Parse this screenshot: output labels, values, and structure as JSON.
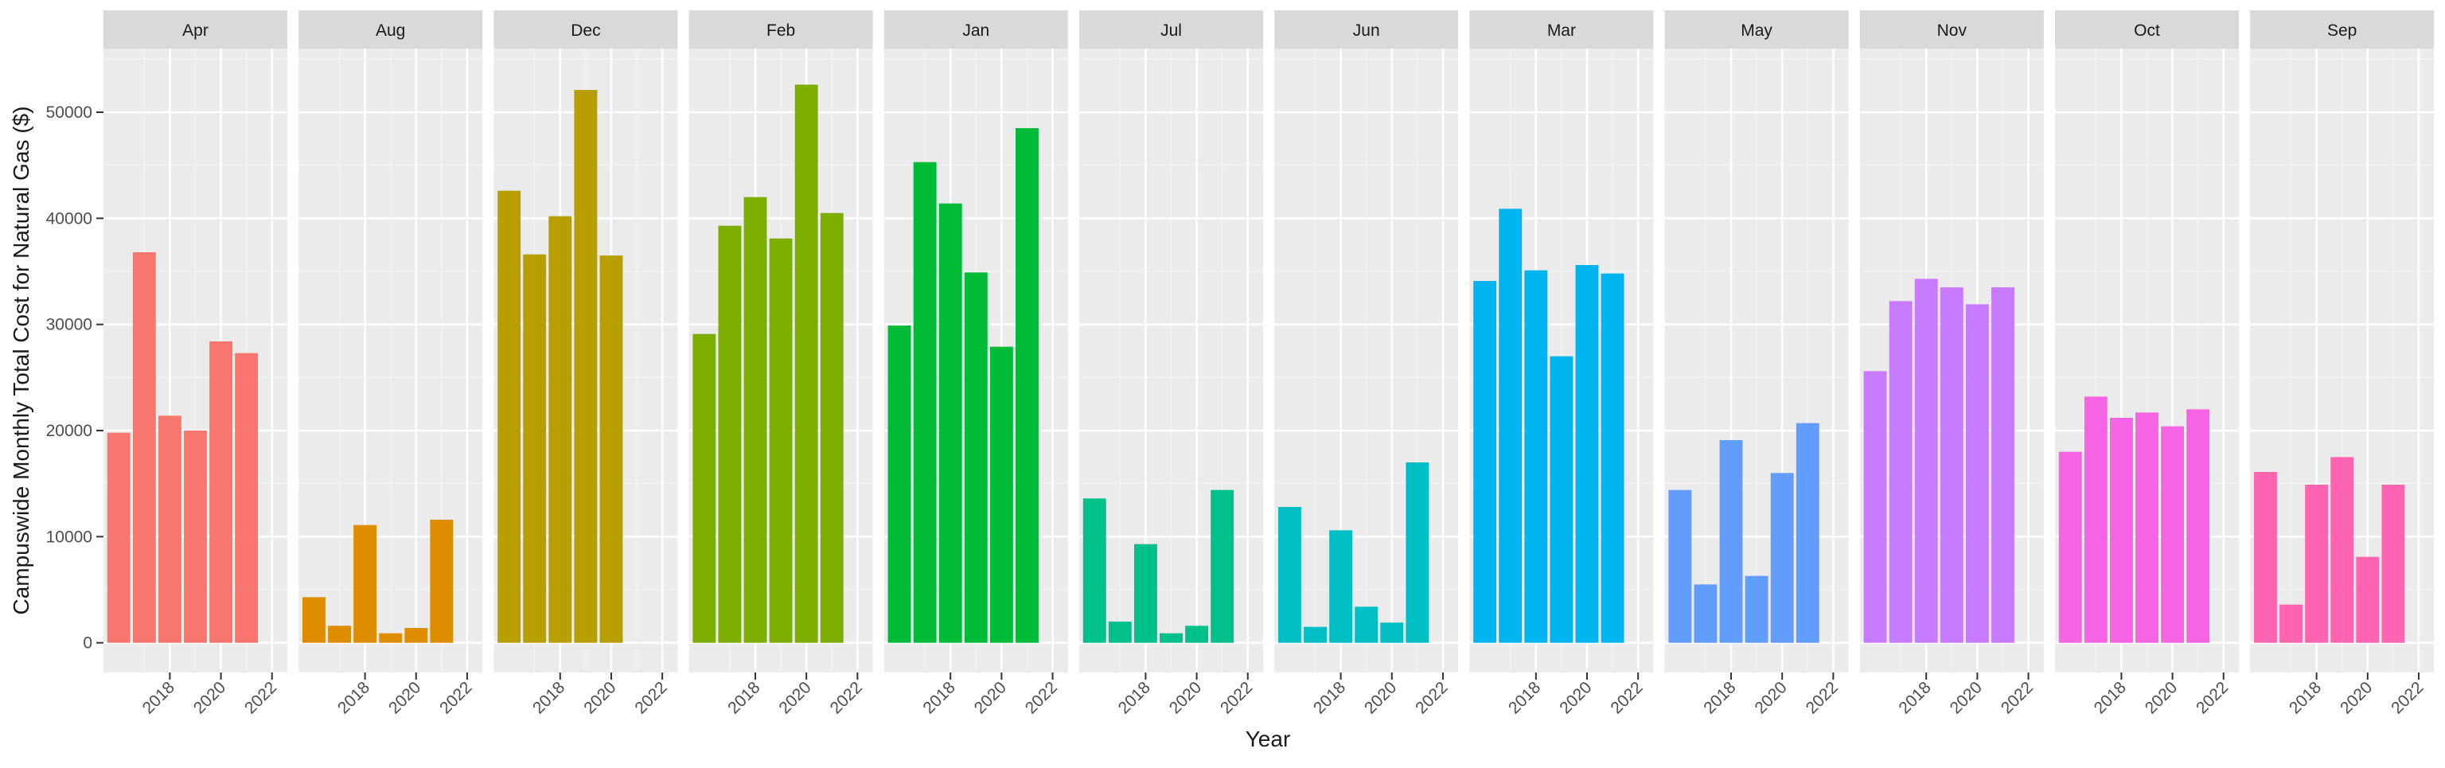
{
  "chart_data": {
    "type": "bar",
    "facet_by": "month",
    "xlabel": "Year",
    "ylabel": "Campuswide Monthly Total Cost for Natural Gas ($)",
    "ylim": [
      -2800,
      56000
    ],
    "xlim": [
      2015.4,
      2022.6
    ],
    "y_ticks": [
      0,
      10000,
      20000,
      30000,
      40000,
      50000
    ],
    "y_tick_labels": [
      "0",
      "10000",
      "20000",
      "30000",
      "40000",
      "50000"
    ],
    "x_ticks": [
      2018,
      2020,
      2022
    ],
    "x_tick_labels": [
      "2018",
      "2020",
      "2022"
    ],
    "grid": true,
    "legend": "none",
    "facets": [
      {
        "label": "Apr",
        "color": "#F8766D",
        "x": [
          2016,
          2017,
          2018,
          2019,
          2020,
          2021
        ],
        "values": [
          19800,
          36800,
          21400,
          20000,
          28400,
          27300
        ]
      },
      {
        "label": "Aug",
        "color": "#DE8C00",
        "x": [
          2016,
          2017,
          2018,
          2019,
          2020,
          2021
        ],
        "values": [
          4300,
          1600,
          11100,
          900,
          1400,
          11600
        ]
      },
      {
        "label": "Dec",
        "color": "#B79F00",
        "x": [
          2016,
          2017,
          2018,
          2019,
          2020
        ],
        "values": [
          42600,
          36600,
          40200,
          52100,
          36500
        ]
      },
      {
        "label": "Feb",
        "color": "#7CAE00",
        "x": [
          2016,
          2017,
          2018,
          2019,
          2020,
          2021
        ],
        "values": [
          29100,
          39300,
          42000,
          38100,
          52600,
          40500
        ]
      },
      {
        "label": "Jan",
        "color": "#00BA38",
        "x": [
          2016,
          2017,
          2018,
          2019,
          2020,
          2021
        ],
        "values": [
          29900,
          45300,
          41400,
          34900,
          27900,
          48500
        ]
      },
      {
        "label": "Jul",
        "color": "#00C08B",
        "x": [
          2016,
          2017,
          2018,
          2019,
          2020,
          2021
        ],
        "values": [
          13600,
          2000,
          9300,
          900,
          1600,
          14400
        ]
      },
      {
        "label": "Jun",
        "color": "#00BFC4",
        "x": [
          2016,
          2017,
          2018,
          2019,
          2020,
          2021
        ],
        "values": [
          12800,
          1500,
          10600,
          3400,
          1900,
          17000
        ]
      },
      {
        "label": "Mar",
        "color": "#00B4F0",
        "x": [
          2016,
          2017,
          2018,
          2019,
          2020,
          2021
        ],
        "values": [
          34100,
          40900,
          35100,
          27000,
          35600,
          34800
        ]
      },
      {
        "label": "May",
        "color": "#619CFF",
        "x": [
          2016,
          2017,
          2018,
          2019,
          2020,
          2021
        ],
        "values": [
          14400,
          5500,
          19100,
          6300,
          16000,
          20700
        ]
      },
      {
        "label": "Nov",
        "color": "#C77CFF",
        "x": [
          2016,
          2017,
          2018,
          2019,
          2020,
          2021
        ],
        "values": [
          25600,
          32200,
          34300,
          33500,
          31900,
          33500
        ]
      },
      {
        "label": "Oct",
        "color": "#F564E3",
        "x": [
          2016,
          2017,
          2018,
          2019,
          2020,
          2021
        ],
        "values": [
          18000,
          23200,
          21200,
          21700,
          20400,
          22000
        ]
      },
      {
        "label": "Sep",
        "color": "#FF64B0",
        "x": [
          2016,
          2017,
          2018,
          2019,
          2020,
          2021
        ],
        "values": [
          16100,
          3600,
          14900,
          17500,
          8100,
          14900
        ]
      }
    ]
  },
  "colors": {
    "panel_bg": "#EBEBEB",
    "strip_bg": "#D9D9D9",
    "grid_major": "#FFFFFF",
    "grid_minor": "#F5F5F5",
    "text_dark": "#1A1A1A",
    "tick_text": "#4D4D4D"
  }
}
